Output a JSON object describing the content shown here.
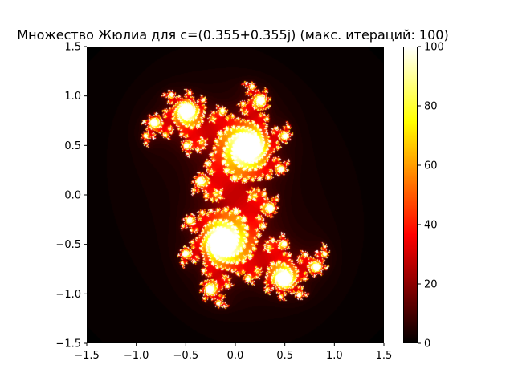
{
  "chart_data": {
    "type": "heatmap",
    "title": "Множество Жюлиа для c=(0.355+0.355j) (макс. итераций: 100)",
    "xlabel": "",
    "ylabel": "",
    "c": [
      0.355,
      0.355
    ],
    "max_iter": 100,
    "colormap": "hot",
    "xlim": [
      -1.5,
      1.5
    ],
    "ylim": [
      -1.5,
      1.5
    ],
    "xticks": [
      "−1.5",
      "−1.0",
      "−0.5",
      "0.0",
      "0.5",
      "1.0",
      "1.5"
    ],
    "yticks": [
      "−1.5",
      "−1.0",
      "−0.5",
      "0.0",
      "0.5",
      "1.0",
      "1.5"
    ],
    "colorbar": {
      "range": [
        0,
        100
      ],
      "ticks": [
        "0",
        "20",
        "40",
        "60",
        "80",
        "100"
      ]
    },
    "grid": false
  }
}
